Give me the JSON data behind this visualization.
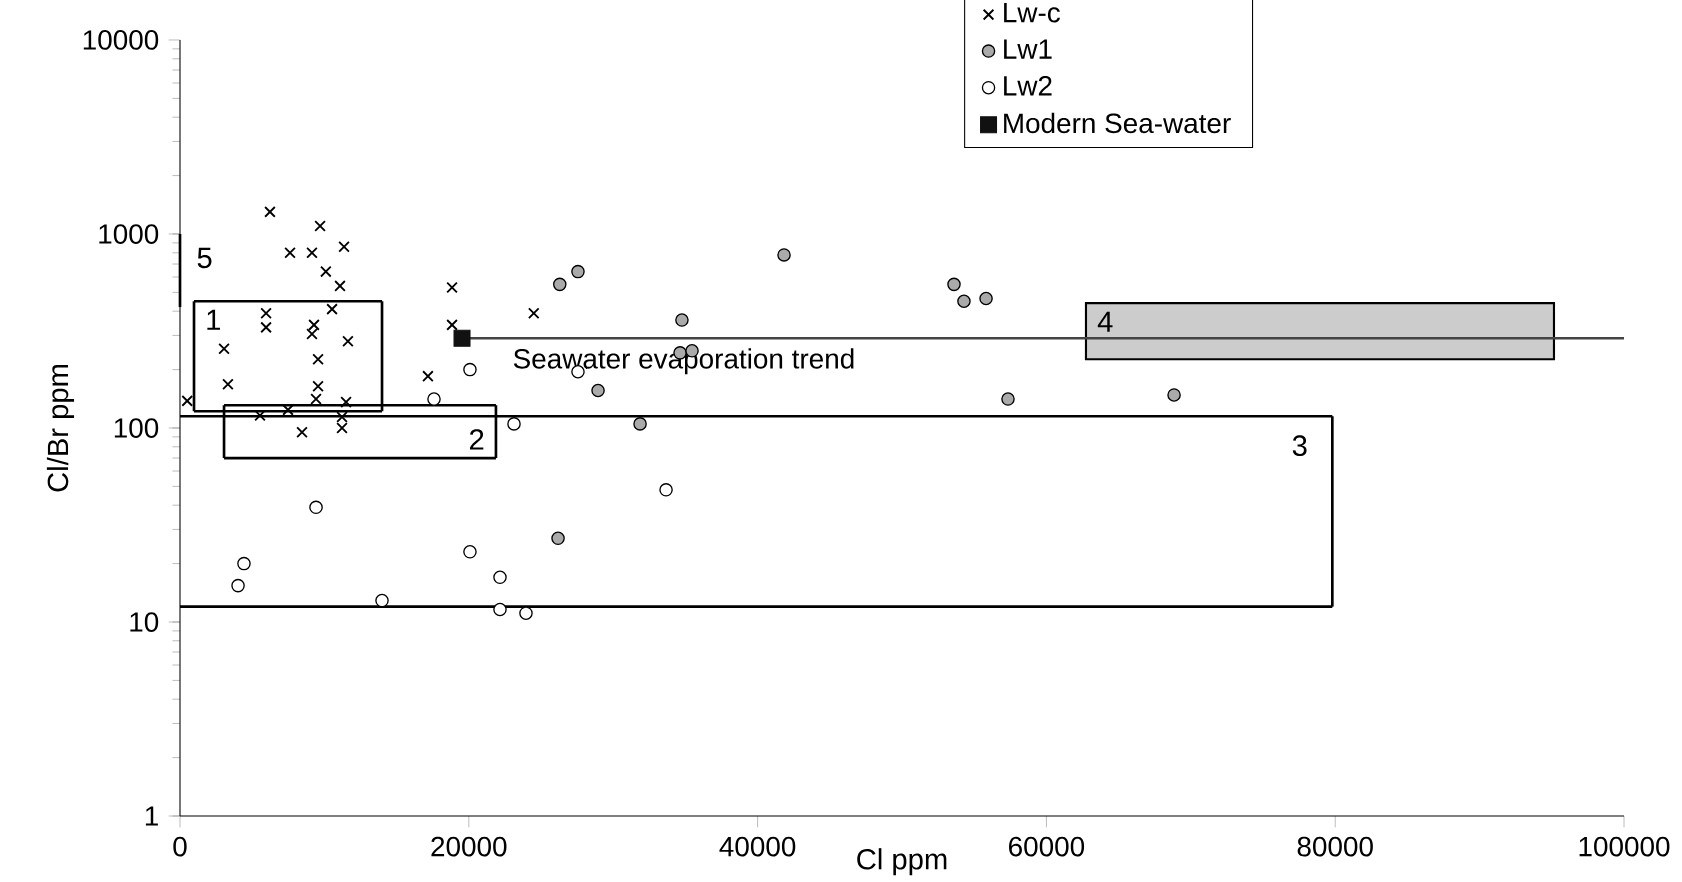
{
  "chart_data": {
    "type": "scatter",
    "xlabel": "Cl ppm",
    "ylabel": "Cl/Br ppm",
    "xlim": [
      0,
      100000
    ],
    "xticks": [
      0,
      20000,
      40000,
      60000,
      80000,
      100000
    ],
    "ylim": [
      1,
      10000
    ],
    "yticks": [
      1,
      10,
      100,
      1000,
      10000
    ],
    "log": "y",
    "legend": "top",
    "series": [
      {
        "name": "Lw-c",
        "type": "scatter",
        "marker": "cross",
        "color": "#000000",
        "x": [
          6230,
          9700,
          7620,
          9140,
          11360,
          10100,
          11080,
          10530,
          5960,
          5960,
          9280,
          9140,
          11630,
          3050,
          9560,
          3320,
          9560,
          9420,
          11500,
          500,
          5540,
          7480,
          11220,
          11220,
          8450,
          18840,
          18840,
          17170,
          24500
        ],
        "values": [
          1300,
          1100,
          800,
          800,
          860,
          640,
          540,
          410,
          390,
          330,
          340,
          305,
          280,
          256,
          226,
          168,
          164,
          141,
          136,
          138,
          116,
          124,
          114,
          100,
          95,
          530,
          340,
          185,
          390
        ]
      },
      {
        "name": "Lw1",
        "type": "scatter",
        "marker": "circle",
        "color": "#aaaaaa",
        "x": [
          26300,
          27560,
          34760,
          34630,
          35460,
          28950,
          31860,
          26180,
          41830,
          53600,
          54290,
          55820,
          57340,
          68840
        ],
        "values": [
          550,
          640,
          360,
          244,
          250,
          156,
          105,
          27,
          780,
          550,
          450,
          465,
          141,
          148
        ]
      },
      {
        "name": "Lw2",
        "type": "scatter",
        "marker": "circle",
        "color": "#ffffff",
        "x": [
          9420,
          4430,
          4020,
          13990,
          20080,
          17590,
          23130,
          20080,
          22160,
          22160,
          23960,
          27560,
          33660
        ],
        "values": [
          39,
          20,
          15.4,
          12.9,
          200,
          141,
          105,
          23,
          17,
          11.6,
          11.1,
          195,
          48
        ]
      },
      {
        "name": "Modern Sea-water",
        "type": "scatter",
        "marker": "square",
        "color": "#111111",
        "x": [
          19530
        ],
        "values": [
          290
        ]
      },
      {
        "type": "line",
        "color": "#444444",
        "x": [
          19530,
          100000
        ],
        "values": [
          290,
          290
        ]
      },
      {
        "type": "line",
        "color": "#000000",
        "x": [
          970,
          13990
        ],
        "values": [
          450,
          450
        ]
      },
      {
        "type": "line",
        "color": "#000000",
        "x": [
          970,
          13990
        ],
        "values": [
          122,
          122
        ]
      },
      {
        "type": "line",
        "color": "#000000",
        "x": [
          970,
          970
        ],
        "values": [
          122,
          450
        ]
      },
      {
        "type": "line",
        "color": "#000000",
        "x": [
          13990,
          13990
        ],
        "values": [
          122,
          450
        ]
      },
      {
        "type": "line",
        "color": "#000000",
        "x": [
          3050,
          21880
        ],
        "values": [
          131,
          131
        ]
      },
      {
        "type": "line",
        "color": "#000000",
        "x": [
          3050,
          21880
        ],
        "values": [
          70,
          70
        ]
      },
      {
        "type": "line",
        "color": "#000000",
        "x": [
          3050,
          3050
        ],
        "values": [
          70,
          131
        ]
      },
      {
        "type": "line",
        "color": "#000000",
        "x": [
          21880,
          21880
        ],
        "values": [
          70,
          131
        ]
      },
      {
        "type": "line",
        "color": "#000000",
        "x": [
          0,
          79800
        ],
        "values": [
          115,
          115
        ]
      },
      {
        "type": "line",
        "color": "#000000",
        "x": [
          0,
          79800
        ],
        "values": [
          12,
          12
        ]
      },
      {
        "type": "line",
        "color": "#000000",
        "x": [
          79800,
          79800
        ],
        "values": [
          12,
          115
        ]
      },
      {
        "type": "area",
        "color": "#cccccc",
        "x": [
          62740,
          95150,
          95150,
          62740,
          62740
        ],
        "values": [
          226,
          226,
          440,
          440,
          226
        ]
      },
      {
        "type": "line",
        "color": "#000000",
        "x": [
          0,
          0
        ],
        "values": [
          420,
          1000
        ]
      }
    ],
    "annotations": [
      {
        "text": "Seawater evaporation trend",
        "x": 34900,
        "y": 221
      },
      {
        "text": "1",
        "x": 970,
        "y": 450
      },
      {
        "text": "2",
        "x": 21880,
        "y": 70
      },
      {
        "text": "3",
        "x": 79800,
        "y": 115
      },
      {
        "text": "4",
        "x": 62740,
        "y": 440
      },
      {
        "text": "5",
        "x": 0,
        "y": 1000
      }
    ]
  }
}
